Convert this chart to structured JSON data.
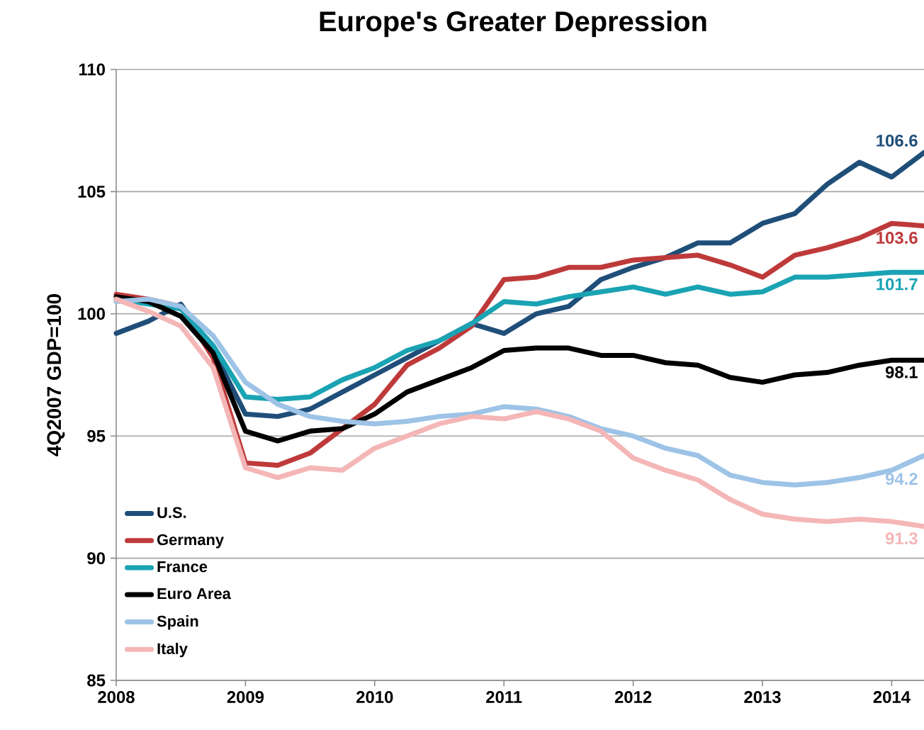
{
  "chart_data": {
    "type": "line",
    "title": "Europe's Greater Depression",
    "ylabel": "4Q2007 GDP=100",
    "x": [
      2008,
      2008.25,
      2008.5,
      2008.75,
      2009,
      2009.25,
      2009.5,
      2009.75,
      2010,
      2010.25,
      2010.5,
      2010.75,
      2011,
      2011.25,
      2011.5,
      2011.75,
      2012,
      2012.25,
      2012.5,
      2012.75,
      2013,
      2013.25,
      2013.5,
      2013.75,
      2014,
      2014.25
    ],
    "series": [
      {
        "name": "U.S.",
        "color": "#1f4e79",
        "values": [
          99.2,
          99.7,
          100.4,
          98.5,
          95.9,
          95.8,
          96.1,
          96.8,
          97.5,
          98.2,
          98.9,
          99.6,
          99.2,
          100.0,
          100.3,
          101.4,
          101.9,
          102.3,
          102.9,
          102.9,
          103.7,
          104.1,
          105.3,
          106.2,
          105.6,
          106.6
        ],
        "value_labels": [
          null,
          null,
          null,
          null,
          null,
          null,
          null,
          null,
          null,
          null,
          null,
          null,
          null,
          null,
          null,
          null,
          null,
          null,
          null,
          null,
          null,
          null,
          null,
          null,
          null,
          "106.6"
        ]
      },
      {
        "name": "Germany",
        "color": "#be3a3a",
        "values": [
          100.8,
          100.6,
          100.3,
          98.2,
          93.9,
          93.8,
          94.3,
          95.3,
          96.3,
          97.9,
          98.6,
          99.5,
          101.4,
          101.5,
          101.9,
          101.9,
          102.2,
          102.3,
          102.4,
          102.0,
          101.5,
          102.4,
          102.7,
          103.1,
          103.7,
          103.6
        ],
        "value_labels": [
          null,
          null,
          null,
          null,
          null,
          null,
          null,
          null,
          null,
          null,
          null,
          null,
          null,
          null,
          null,
          null,
          null,
          null,
          null,
          null,
          null,
          null,
          null,
          null,
          null,
          "103.6"
        ]
      },
      {
        "name": "France",
        "color": "#1aa3b3",
        "values": [
          100.6,
          100.4,
          100.2,
          98.7,
          96.6,
          96.5,
          96.6,
          97.3,
          97.8,
          98.5,
          98.9,
          99.6,
          100.5,
          100.4,
          100.7,
          100.9,
          101.1,
          100.8,
          101.1,
          100.8,
          100.9,
          101.5,
          101.5,
          101.6,
          101.7,
          101.7
        ],
        "value_labels": [
          null,
          null,
          null,
          null,
          null,
          null,
          null,
          null,
          null,
          null,
          null,
          null,
          null,
          null,
          null,
          null,
          null,
          null,
          null,
          null,
          null,
          null,
          null,
          null,
          null,
          "101.7"
        ]
      },
      {
        "name": "Euro Area",
        "color": "#000000",
        "values": [
          100.7,
          100.5,
          99.9,
          98.4,
          95.2,
          94.8,
          95.2,
          95.3,
          95.9,
          96.8,
          97.3,
          97.8,
          98.5,
          98.6,
          98.6,
          98.3,
          98.3,
          98.0,
          97.9,
          97.4,
          97.2,
          97.5,
          97.6,
          97.9,
          98.1,
          98.1
        ],
        "value_labels": [
          null,
          null,
          null,
          null,
          null,
          null,
          null,
          null,
          null,
          null,
          null,
          null,
          null,
          null,
          null,
          null,
          null,
          null,
          null,
          null,
          null,
          null,
          null,
          null,
          null,
          "98.1"
        ]
      },
      {
        "name": "Spain",
        "color": "#9dc3e6",
        "values": [
          100.5,
          100.6,
          100.3,
          99.1,
          97.2,
          96.3,
          95.8,
          95.6,
          95.5,
          95.6,
          95.8,
          95.9,
          96.2,
          96.1,
          95.8,
          95.3,
          95.0,
          94.5,
          94.2,
          93.4,
          93.1,
          93.0,
          93.1,
          93.3,
          93.6,
          94.2
        ],
        "value_labels": [
          null,
          null,
          null,
          null,
          null,
          null,
          null,
          null,
          null,
          null,
          null,
          null,
          null,
          null,
          null,
          null,
          null,
          null,
          null,
          null,
          null,
          null,
          null,
          null,
          null,
          "94.2"
        ]
      },
      {
        "name": "Italy",
        "color": "#f4b6b6",
        "values": [
          100.6,
          100.1,
          99.5,
          97.8,
          93.7,
          93.3,
          93.7,
          93.6,
          94.5,
          95.0,
          95.5,
          95.8,
          95.7,
          96.0,
          95.7,
          95.2,
          94.1,
          93.6,
          93.2,
          92.4,
          91.8,
          91.6,
          91.5,
          91.6,
          91.5,
          91.3
        ],
        "value_labels": [
          null,
          null,
          null,
          null,
          null,
          null,
          null,
          null,
          null,
          null,
          null,
          null,
          null,
          null,
          null,
          null,
          null,
          null,
          null,
          null,
          null,
          null,
          null,
          null,
          null,
          "91.3"
        ]
      }
    ],
    "xlim": [
      2008,
      2014.25
    ],
    "xticks": [
      2008,
      2009,
      2010,
      2011,
      2012,
      2013,
      2014
    ],
    "ylim": [
      85,
      110
    ],
    "yticks": [
      85,
      90,
      95,
      100,
      105,
      110
    ],
    "grid": "y",
    "legend": "bottom left",
    "marker": "none",
    "line_style": "solid"
  }
}
